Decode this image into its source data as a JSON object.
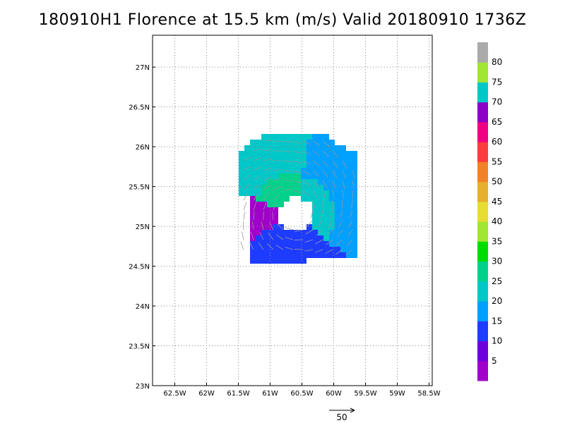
{
  "title": "180910H1 Florence at 15.5 km (m/s) Valid 20180910  1736Z",
  "map": {
    "lon_range": [
      -62.85,
      -58.45
    ],
    "lat_range": [
      23.0,
      27.4
    ],
    "lon_ticks": [
      {
        "value": -62.5,
        "label": "62.5W"
      },
      {
        "value": -62.0,
        "label": "62W"
      },
      {
        "value": -61.5,
        "label": "61.5W"
      },
      {
        "value": -61.0,
        "label": "61W"
      },
      {
        "value": -60.5,
        "label": "60.5W"
      },
      {
        "value": -60.0,
        "label": "60W"
      },
      {
        "value": -59.5,
        "label": "59.5W"
      },
      {
        "value": -59.0,
        "label": "59W"
      },
      {
        "value": -58.5,
        "label": "58.5W"
      }
    ],
    "lat_ticks": [
      {
        "value": 23.0,
        "label": "23N"
      },
      {
        "value": 23.5,
        "label": "23.5N"
      },
      {
        "value": 24.0,
        "label": "24N"
      },
      {
        "value": 24.5,
        "label": "24.5N"
      },
      {
        "value": 25.0,
        "label": "25N"
      },
      {
        "value": 25.5,
        "label": "25.5N"
      },
      {
        "value": 26.0,
        "label": "26N"
      },
      {
        "value": 26.5,
        "label": "26.5N"
      },
      {
        "value": 27.0,
        "label": "27N"
      }
    ]
  },
  "colorbar": {
    "levels": [
      0,
      5,
      10,
      15,
      20,
      25,
      30,
      35,
      40,
      45,
      50,
      55,
      60,
      65,
      70,
      75,
      80,
      85
    ],
    "colors": [
      "#a000c8",
      "#6e00dc",
      "#1e3cff",
      "#00a0ff",
      "#00c8c8",
      "#00d28c",
      "#00dc00",
      "#a0e632",
      "#e6dc32",
      "#e6af2d",
      "#f08228",
      "#fa3c3c",
      "#f00082",
      "#8c00c8",
      "#00c8c8",
      "#a0e632",
      "#aaaaaa"
    ],
    "labels": [
      "5",
      "10",
      "15",
      "20",
      "25",
      "30",
      "35",
      "40",
      "45",
      "50",
      "55",
      "60",
      "65",
      "70",
      "75",
      "80"
    ]
  },
  "reference_vector": {
    "label": "50"
  }
}
